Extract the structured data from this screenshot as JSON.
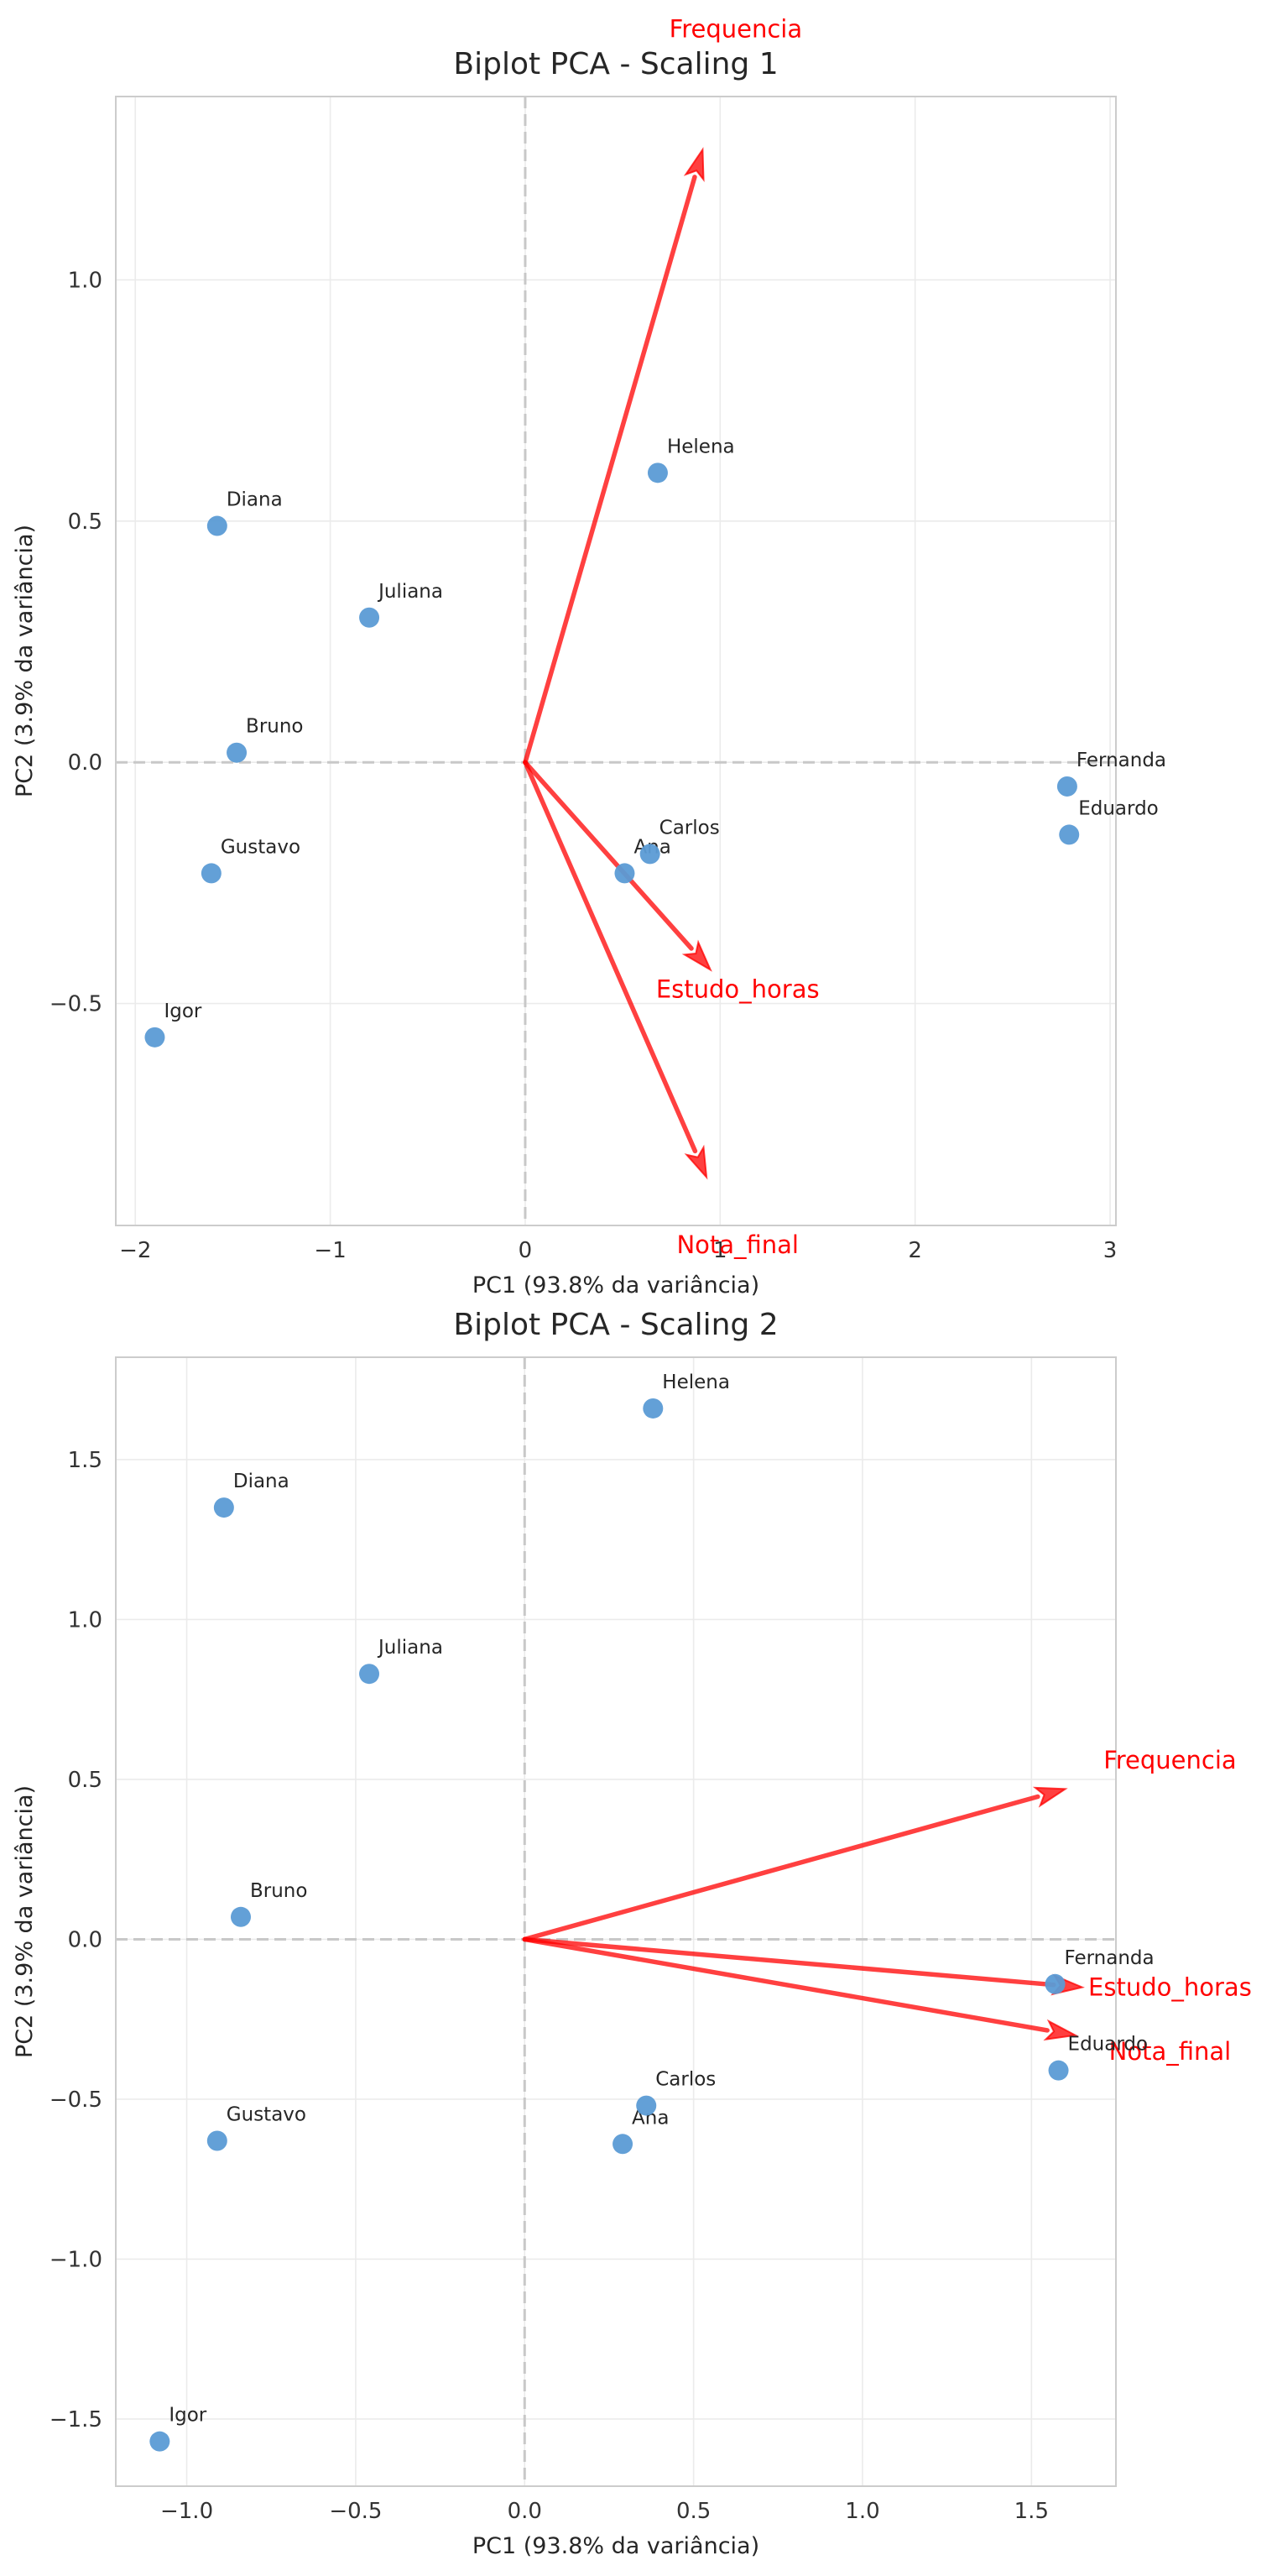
{
  "chart_data": [
    {
      "type": "scatter",
      "title": "Biplot PCA - Scaling 1",
      "xlabel": "PC1 (93.8% da variância)",
      "ylabel": "PC2 (3.9% da variância)",
      "xlim": [
        -2.1,
        3.03
      ],
      "ylim": [
        -0.96,
        1.38
      ],
      "xticks": [
        -2,
        -1,
        0,
        1,
        2,
        3
      ],
      "xtick_labels": [
        "−2",
        "−1",
        "0",
        "1",
        "2",
        "3"
      ],
      "yticks": [
        -0.5,
        0.0,
        0.5,
        1.0
      ],
      "ytick_labels": [
        "−0.5",
        "0.0",
        "0.5",
        "1.0"
      ],
      "grid": true,
      "point_color": "#5b9bd5",
      "arrow_color": "#ff0000",
      "points": [
        {
          "label": "Ana",
          "x": 0.51,
          "y": -0.23
        },
        {
          "label": "Bruno",
          "x": -1.48,
          "y": 0.02
        },
        {
          "label": "Carlos",
          "x": 0.64,
          "y": -0.19
        },
        {
          "label": "Diana",
          "x": -1.58,
          "y": 0.49
        },
        {
          "label": "Eduardo",
          "x": 2.79,
          "y": -0.15
        },
        {
          "label": "Fernanda",
          "x": 2.78,
          "y": -0.05
        },
        {
          "label": "Gustavo",
          "x": -1.61,
          "y": -0.23
        },
        {
          "label": "Helena",
          "x": 0.68,
          "y": 0.6
        },
        {
          "label": "Igor",
          "x": -1.9,
          "y": -0.57
        },
        {
          "label": "Juliana",
          "x": -0.8,
          "y": 0.3
        }
      ],
      "loadings": [
        {
          "name": "Frequencia",
          "x": 0.91,
          "y": 1.27,
          "label_x": 1.08,
          "label_y": 1.52
        },
        {
          "name": "Estudo_horas",
          "x": 0.95,
          "y": -0.43,
          "label_x": 1.09,
          "label_y": -0.47
        },
        {
          "name": "Nota_final",
          "x": 0.93,
          "y": -0.86,
          "label_x": 1.09,
          "label_y": -1.0
        }
      ]
    },
    {
      "type": "scatter",
      "title": "Biplot PCA - Scaling 2",
      "xlabel": "PC1 (93.8% da variância)",
      "ylabel": "PC2 (3.9% da variância)",
      "xlim": [
        -1.21,
        1.75
      ],
      "ylim": [
        -1.71,
        1.82
      ],
      "xticks": [
        -1.0,
        -0.5,
        0.0,
        0.5,
        1.0,
        1.5
      ],
      "xtick_labels": [
        "−1.0",
        "−0.5",
        "0.0",
        "0.5",
        "1.0",
        "1.5"
      ],
      "yticks": [
        -1.5,
        -1.0,
        -0.5,
        0.0,
        0.5,
        1.0,
        1.5
      ],
      "ytick_labels": [
        "−1.5",
        "−1.0",
        "−0.5",
        "0.0",
        "0.5",
        "1.0",
        "1.5"
      ],
      "grid": true,
      "point_color": "#5b9bd5",
      "arrow_color": "#ff0000",
      "points": [
        {
          "label": "Ana",
          "x": 0.29,
          "y": -0.64
        },
        {
          "label": "Bruno",
          "x": -0.84,
          "y": 0.07
        },
        {
          "label": "Carlos",
          "x": 0.36,
          "y": -0.52
        },
        {
          "label": "Diana",
          "x": -0.89,
          "y": 1.35
        },
        {
          "label": "Eduardo",
          "x": 1.58,
          "y": -0.41
        },
        {
          "label": "Fernanda",
          "x": 1.57,
          "y": -0.14
        },
        {
          "label": "Gustavo",
          "x": -0.91,
          "y": -0.63
        },
        {
          "label": "Helena",
          "x": 0.38,
          "y": 1.66
        },
        {
          "label": "Igor",
          "x": -1.08,
          "y": -1.57
        },
        {
          "label": "Juliana",
          "x": -0.46,
          "y": 0.83
        }
      ],
      "loadings": [
        {
          "name": "Frequencia",
          "x": 1.6,
          "y": 0.47,
          "label_x": 1.91,
          "label_y": 0.56
        },
        {
          "name": "Estudo_horas",
          "x": 1.65,
          "y": -0.15,
          "label_x": 1.91,
          "label_y": -0.15
        },
        {
          "name": "Nota_final",
          "x": 1.63,
          "y": -0.3,
          "label_x": 1.91,
          "label_y": -0.35
        }
      ]
    }
  ]
}
